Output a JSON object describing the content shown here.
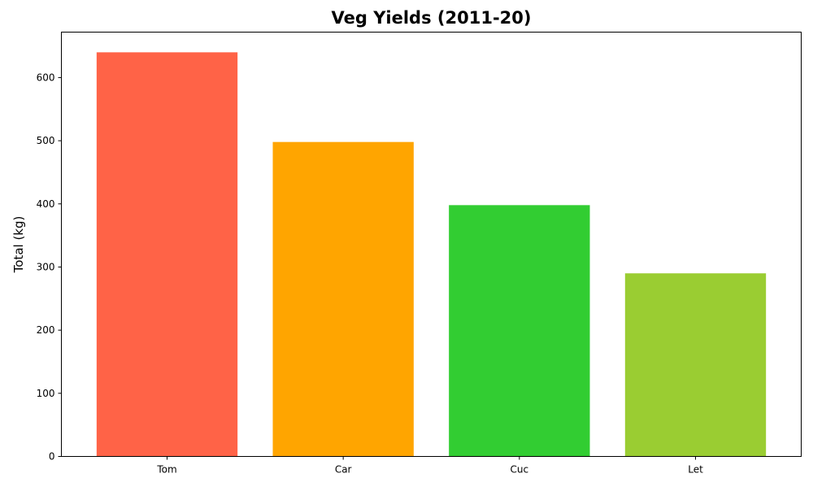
{
  "chart_data": {
    "type": "bar",
    "title": "Veg Yields (2011-20)",
    "xlabel": "",
    "ylabel": "Total (kg)",
    "categories": [
      "Tom",
      "Car",
      "Cuc",
      "Let"
    ],
    "values": [
      640,
      498,
      398,
      290
    ],
    "colors": [
      "#ff6347",
      "#ffa500",
      "#32cd32",
      "#9acd32"
    ],
    "ylim": [
      0,
      672
    ],
    "yticks": [
      0,
      100,
      200,
      300,
      400,
      500,
      600
    ],
    "grid": false
  }
}
